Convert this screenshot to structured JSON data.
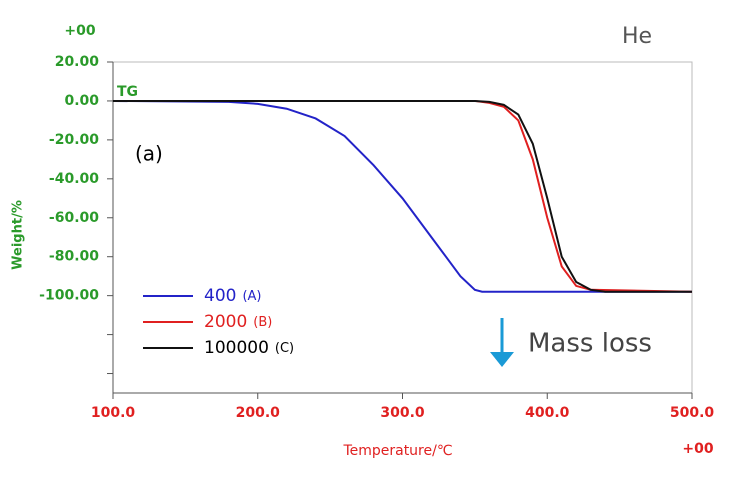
{
  "chart_data": {
    "type": "line",
    "y_label": "Weight/%",
    "x_label": "Temperature/℃",
    "y_exponent": "+00",
    "x_exponent": "+00",
    "signal_label": "TG",
    "panel_label": "(a)",
    "gas_label": "He",
    "annotation": "Mass loss",
    "xlim": [
      100,
      500
    ],
    "xticks": [
      {
        "value": 100,
        "label": "100.0"
      },
      {
        "value": 200,
        "label": "200.0"
      },
      {
        "value": 300,
        "label": "300.0"
      },
      {
        "value": 400,
        "label": "400.0"
      },
      {
        "value": 500,
        "label": "500.0"
      }
    ],
    "ylim": [
      -150,
      20
    ],
    "yticks": [
      {
        "value": 20,
        "label": "20.00"
      },
      {
        "value": 0,
        "label": "0.00"
      },
      {
        "value": -20,
        "label": "-20.00"
      },
      {
        "value": -40,
        "label": "-40.00"
      },
      {
        "value": -60,
        "label": "-60.00"
      },
      {
        "value": -80,
        "label": "-80.00"
      },
      {
        "value": -100,
        "label": "-100.00"
      }
    ],
    "yminorticks": [
      -120,
      -140
    ],
    "series": [
      {
        "name": "400",
        "tag": "(A)",
        "color": "#2323c8",
        "x": [
          100,
          180,
          200,
          220,
          240,
          260,
          280,
          300,
          320,
          330,
          340,
          350,
          355,
          500
        ],
        "values": [
          0,
          -0.5,
          -1.5,
          -4,
          -9,
          -18,
          -33,
          -50,
          -70,
          -80,
          -90,
          -97,
          -98,
          -98
        ]
      },
      {
        "name": "2000",
        "tag": "(B)",
        "color": "#e02020",
        "x": [
          100,
          350,
          360,
          370,
          380,
          390,
          400,
          410,
          420,
          430,
          500
        ],
        "values": [
          0,
          0,
          -1,
          -3,
          -10,
          -30,
          -60,
          -85,
          -95,
          -97,
          -98
        ]
      },
      {
        "name": "100000",
        "tag": "(C)",
        "color": "#111111",
        "x": [
          100,
          350,
          360,
          370,
          380,
          390,
          400,
          410,
          420,
          430,
          440,
          500
        ],
        "values": [
          0,
          0,
          -0.5,
          -2,
          -7,
          -22,
          -50,
          -80,
          -93,
          -97,
          -98,
          -98
        ]
      }
    ]
  }
}
